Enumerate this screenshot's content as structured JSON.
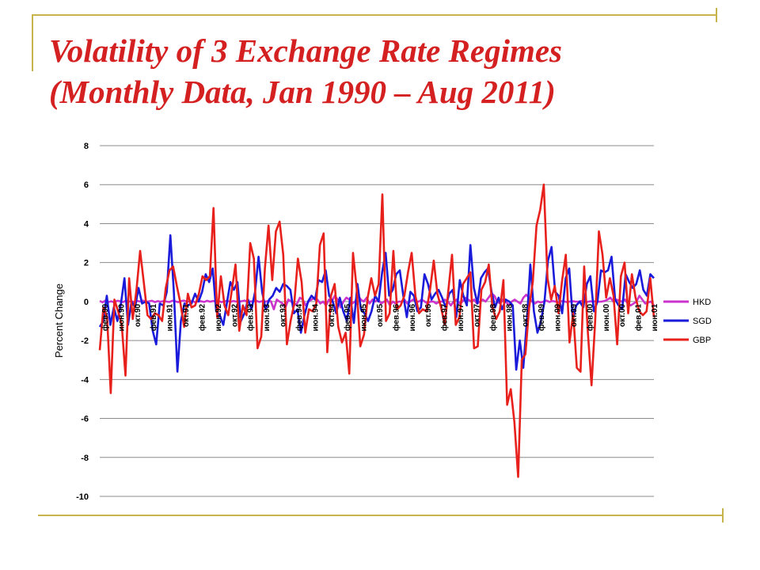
{
  "slide": {
    "title_line1": "Volatility of 3 Exchange Rate Regimes",
    "title_line2": "(Monthly Data, Jan 1990 – Aug 2011)"
  },
  "chart_data": {
    "type": "line",
    "title": "",
    "xlabel": "",
    "ylabel": "Percent Change",
    "ylim": [
      -10,
      8
    ],
    "yticks": [
      -10,
      -8,
      -6,
      -4,
      -2,
      0,
      2,
      4,
      6,
      8
    ],
    "grid": true,
    "legend": "right",
    "x_tick_labels": [
      "фев.90",
      "июн.90",
      "окт.90",
      "фев.91",
      "июн.91",
      "окт.91",
      "фев.92",
      "июн.92",
      "окт.92",
      "фев.93",
      "июн.93",
      "окт.93",
      "фев.94",
      "июн.94",
      "окт.94",
      "фев.95",
      "июн.95",
      "окт.95",
      "фев.96",
      "июн.96",
      "окт.96",
      "фев.97",
      "июн.97",
      "окт.97",
      "фев.98",
      "июн.98",
      "окт.98",
      "фев.99",
      "июн.99",
      "окт.99",
      "фев.00",
      "июн.00",
      "окт.00",
      "фев.01",
      "июн.01"
    ],
    "series": [
      {
        "name": "HKD",
        "color": "#cc33cc",
        "values": [
          0.03,
          -0.04,
          0.06,
          -0.02,
          0.01,
          -0.05,
          0.04,
          0.02,
          -0.03,
          0.05,
          -0.01,
          0.02,
          -0.04,
          0.03,
          0.0,
          0.05,
          -0.02,
          0.01,
          0.04,
          -0.03,
          0.02,
          -0.01,
          0.03,
          0.0,
          -0.02,
          0.04,
          0.01,
          -0.03,
          0.02,
          0.05,
          -0.01,
          0.0,
          0.03,
          -0.04,
          0.02,
          0.01,
          -0.02,
          0.04,
          -0.01,
          0.03,
          0.0,
          0.02,
          -0.03,
          0.01,
          0.04,
          -0.02,
          0.03,
          0.0,
          -0.01,
          0.02,
          0.05,
          -0.03,
          0.01,
          0.0,
          0.04,
          -0.02,
          0.02,
          -0.01,
          0.03,
          0.01,
          -0.4,
          0.1,
          0.0,
          -0.1,
          -0.3,
          0.1,
          0.0,
          -0.2,
          -0.1,
          0.2,
          0.1,
          -0.2,
          0.0,
          0.1,
          0.2,
          0.1,
          -0.1,
          0.0,
          -0.2,
          0.1,
          0.0,
          0.3,
          0.1,
          -0.3,
          0.0,
          0.2,
          0.1,
          -0.1,
          0.0,
          0.3,
          0.1,
          0.0,
          0.2,
          -0.1,
          0.1,
          0.0,
          0.1,
          -0.1,
          0.0,
          0.1,
          -0.2,
          0.0,
          -0.1,
          0.0,
          0.0,
          0.1,
          -0.1,
          0.0,
          0.1,
          0.0,
          0.0,
          0.1,
          0.0,
          -0.1,
          0.0,
          0.0,
          -0.1,
          0.0,
          0.0,
          0.1,
          0.0,
          -0.2,
          0.0,
          0.1,
          -0.1,
          0.0,
          0.2,
          0.1,
          0.0,
          0.1,
          -0.1,
          0.0,
          0.1,
          0.0,
          0.2,
          0.4,
          0.3,
          0.0,
          -0.1,
          0.1,
          0.0,
          -0.2,
          0.0,
          0.1,
          0.0,
          -0.1,
          0.2,
          0.35,
          0.2,
          0.0,
          -0.1,
          0.0,
          -0.05,
          0.0,
          0.05,
          -0.02,
          0.03,
          0.0,
          -0.04,
          0.02,
          0.01,
          -0.03,
          0.0,
          0.02,
          0.0,
          -0.01,
          0.03,
          0.0,
          -0.02,
          0.01,
          0.0,
          0.02,
          -0.01,
          0.0,
          0.03,
          0.1,
          0.2,
          0.0,
          0.1,
          0.05,
          0.0,
          0.1,
          -0.1,
          -0.2,
          -0.1,
          0.0,
          0.3,
          0.1,
          -0.1,
          -0.05,
          0.0,
          -0.2
        ]
      },
      {
        "name": "SGD",
        "color": "#1a1adb",
        "values": [
          -1.3,
          -1.0,
          0.3,
          -1.2,
          -0.3,
          -1.0,
          -0.1,
          1.2,
          -1.2,
          0.0,
          -0.3,
          0.7,
          -0.1,
          0.0,
          -0.1,
          -1.5,
          -2.2,
          -0.1,
          -0.2,
          0.5,
          3.4,
          0.5,
          -3.6,
          -1.0,
          -0.1,
          -0.2,
          -0.1,
          0.4,
          0.0,
          0.5,
          1.4,
          1.0,
          1.7,
          -0.5,
          -0.7,
          -1.2,
          -0.1,
          1.0,
          0.6,
          1.0,
          -1.0,
          -0.6,
          0.1,
          -0.4,
          0.5,
          2.3,
          0.5,
          -0.4,
          0.1,
          0.3,
          0.7,
          0.5,
          0.9,
          0.8,
          0.6,
          -0.6,
          -0.4,
          -1.6,
          -0.7,
          0.0,
          0.3,
          0.1,
          1.1,
          1.0,
          1.6,
          0.3,
          0.0,
          -0.6,
          0.2,
          -0.5,
          -1.0,
          0.2,
          -1.1,
          0.9,
          -0.4,
          -0.6,
          -1.0,
          -0.5,
          0.3,
          0.0,
          1.5,
          2.5,
          0.3,
          0.6,
          1.4,
          1.6,
          0.3,
          -0.8,
          0.5,
          0.3,
          -0.5,
          -0.3,
          1.4,
          0.9,
          0.1,
          0.4,
          0.6,
          0.2,
          -0.3,
          0.4,
          0.6,
          -0.8,
          1.1,
          0.3,
          -0.2,
          2.9,
          0.7,
          -0.1,
          1.2,
          1.5,
          1.7,
          0.5,
          -0.3,
          0.2,
          -0.4,
          0.1,
          0.0,
          -0.2,
          -3.5,
          -2.0,
          -3.4,
          -1.0,
          1.9,
          -0.5,
          -1.6,
          -1.0,
          0.0,
          2.1,
          2.8,
          0.5,
          0.3,
          -0.6,
          1.2,
          1.7,
          -0.9,
          -0.2,
          0.0,
          -0.3,
          0.9,
          1.3,
          -0.5,
          0.0,
          1.6,
          1.5,
          1.6,
          2.3,
          0.1,
          -0.2,
          -0.4,
          1.4,
          1.0,
          0.7,
          0.9,
          1.6,
          0.6,
          0.3,
          1.4,
          1.2
        ]
      },
      {
        "name": "GBP",
        "color": "#e8201c",
        "values": [
          -2.5,
          -0.3,
          -0.8,
          -4.7,
          0.1,
          -0.5,
          -1.2,
          -3.8,
          1.2,
          -0.9,
          0.6,
          2.6,
          1.0,
          -0.7,
          -0.9,
          -0.6,
          -0.7,
          -1.0,
          0.7,
          1.6,
          1.8,
          0.8,
          -0.1,
          -1.3,
          0.4,
          -0.3,
          -0.2,
          0.4,
          1.3,
          1.1,
          1.3,
          4.8,
          -0.8,
          1.3,
          -0.2,
          -0.7,
          0.6,
          1.9,
          -1.5,
          -0.2,
          -0.7,
          3.0,
          2.2,
          -2.4,
          -1.8,
          1.7,
          3.9,
          1.1,
          3.6,
          4.1,
          2.4,
          -2.2,
          -1.0,
          -0.1,
          2.2,
          1.0,
          -1.6,
          -0.4,
          -0.5,
          -0.1,
          2.9,
          3.5,
          -2.6,
          0.3,
          0.9,
          -1.3,
          -2.1,
          -1.6,
          -3.7,
          2.5,
          0.7,
          -2.3,
          -1.7,
          0.2,
          1.2,
          0.3,
          0.9,
          5.5,
          -1.0,
          -0.6,
          2.6,
          -0.4,
          -0.2,
          0.3,
          1.5,
          2.5,
          0.3,
          -0.6,
          -0.4,
          -0.5,
          0.6,
          2.1,
          0.4,
          -0.3,
          -1.2,
          0.6,
          2.4,
          -1.2,
          -0.8,
          0.9,
          1.2,
          1.5,
          -2.4,
          -2.3,
          0.6,
          1.0,
          1.9,
          -0.3,
          -0.9,
          -0.5,
          1.1,
          -5.3,
          -4.5,
          -6.2,
          -9.0,
          -3.0,
          -2.7,
          -0.3,
          1.0,
          3.9,
          4.7,
          6.0,
          1.2,
          0.1,
          0.8,
          -0.6,
          1.1,
          2.4,
          -2.1,
          -0.6,
          -3.4,
          -3.6,
          1.8,
          -1.6,
          -4.3,
          -1.0,
          3.6,
          2.4,
          0.2,
          1.2,
          0.3,
          -2.2,
          1.3,
          2.0,
          -0.6,
          1.4,
          0.2,
          -0.5,
          -0.7,
          -0.5,
          1.2,
          -0.8
        ]
      }
    ]
  }
}
